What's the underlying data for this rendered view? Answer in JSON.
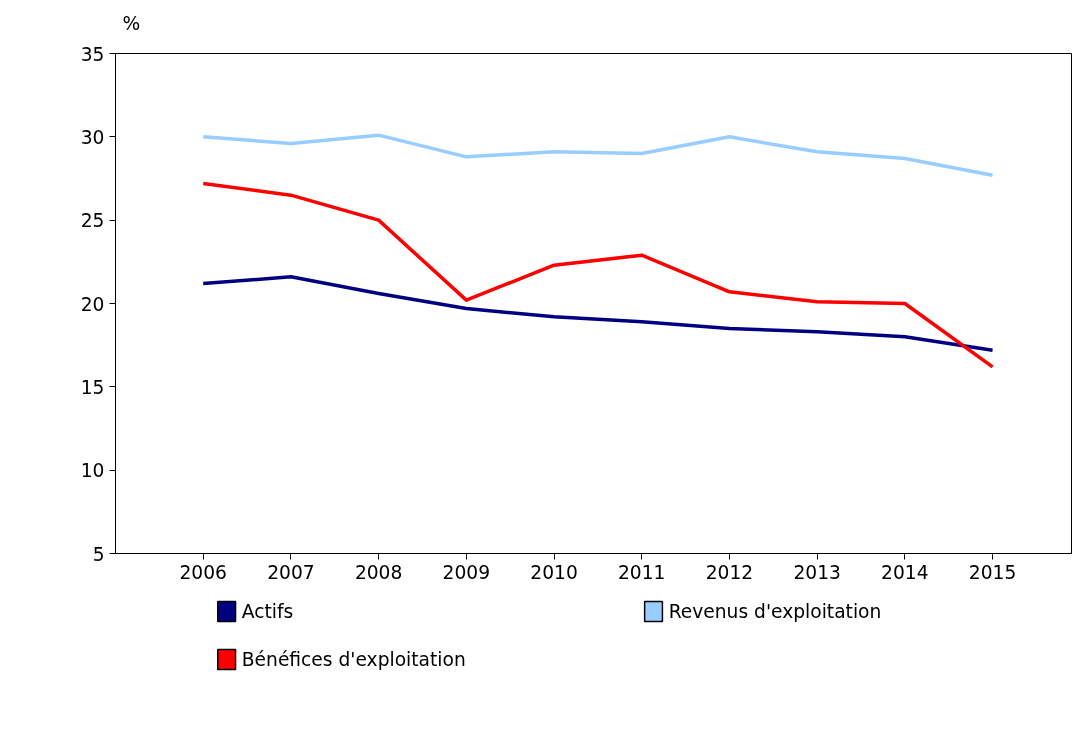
{
  "chart_data": {
    "type": "line",
    "ylabel": "%",
    "categories": [
      "2006",
      "2007",
      "2008",
      "2009",
      "2010",
      "2011",
      "2012",
      "2013",
      "2014",
      "2015"
    ],
    "ylim": [
      5,
      35
    ],
    "yticks": [
      5,
      10,
      15,
      20,
      25,
      30,
      35
    ],
    "grid": false,
    "legend": "bottom",
    "series": [
      {
        "name": "Actifs",
        "color": "#000080",
        "values": [
          21.2,
          21.6,
          20.6,
          19.7,
          19.2,
          18.9,
          18.5,
          18.3,
          18.0,
          17.2
        ]
      },
      {
        "name": "Revenus d'exploitation",
        "color": "#99ccff",
        "values": [
          30.0,
          29.6,
          30.1,
          28.8,
          29.1,
          29.0,
          30.0,
          29.1,
          28.7,
          27.7
        ]
      },
      {
        "name": "Bénéfices d'exploitation",
        "color": "#ff0000",
        "values": [
          27.2,
          26.5,
          25.0,
          20.2,
          22.3,
          22.9,
          20.7,
          20.1,
          20.0,
          16.2
        ]
      }
    ]
  }
}
